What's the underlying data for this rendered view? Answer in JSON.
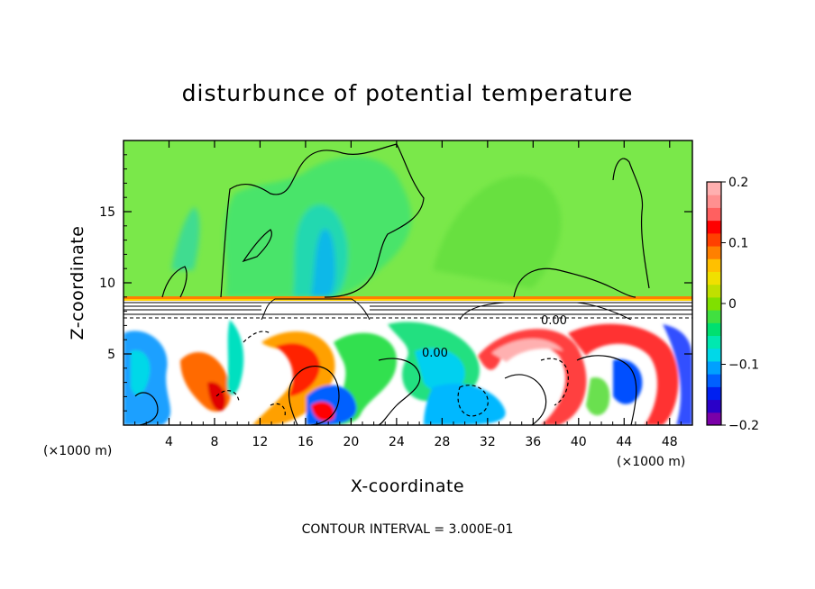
{
  "chart_data": {
    "type": "heatmap",
    "title": "disturbunce of potential temperature",
    "xlabel": "X-coordinate",
    "ylabel": "Z-coordinate",
    "x_unit_label": "(×1000 m)",
    "x_unit_label_right": "(×1000 m)",
    "xlim": [
      0,
      50
    ],
    "ylim": [
      0,
      20
    ],
    "xticks": [
      4,
      8,
      12,
      16,
      20,
      24,
      28,
      32,
      36,
      40,
      44,
      48
    ],
    "xtick_labels": [
      "4",
      "8",
      "12",
      "16",
      "20",
      "24",
      "28",
      "32",
      "36",
      "40",
      "44",
      "48"
    ],
    "yticks": [
      5,
      10,
      15
    ],
    "ytick_labels": [
      "5",
      "10",
      "15"
    ],
    "colorbar": {
      "min": -0.2,
      "max": 0.2,
      "ticks": [
        0.2,
        0.1,
        0,
        -0.1,
        -0.2
      ],
      "tick_labels": [
        "0.2",
        "0.1",
        "0",
        "−0.1",
        "−0.2"
      ],
      "colors": [
        "#7a00a8",
        "#2a00c8",
        "#0020f0",
        "#0060ff",
        "#00a0ff",
        "#00d8e8",
        "#00e8b0",
        "#00e070",
        "#40e040",
        "#80e000",
        "#c0e000",
        "#f0e000",
        "#ffc000",
        "#ff8000",
        "#ff4000",
        "#ff0000",
        "#ff6060",
        "#ff9090",
        "#ffb0b0"
      ]
    },
    "annotations": [
      "0.00"
    ],
    "footer": "CONTOUR INTERVAL = 3.000E-01",
    "background_color": "#7ae84a",
    "layer_band_z": [
      7.5,
      9.0
    ]
  }
}
